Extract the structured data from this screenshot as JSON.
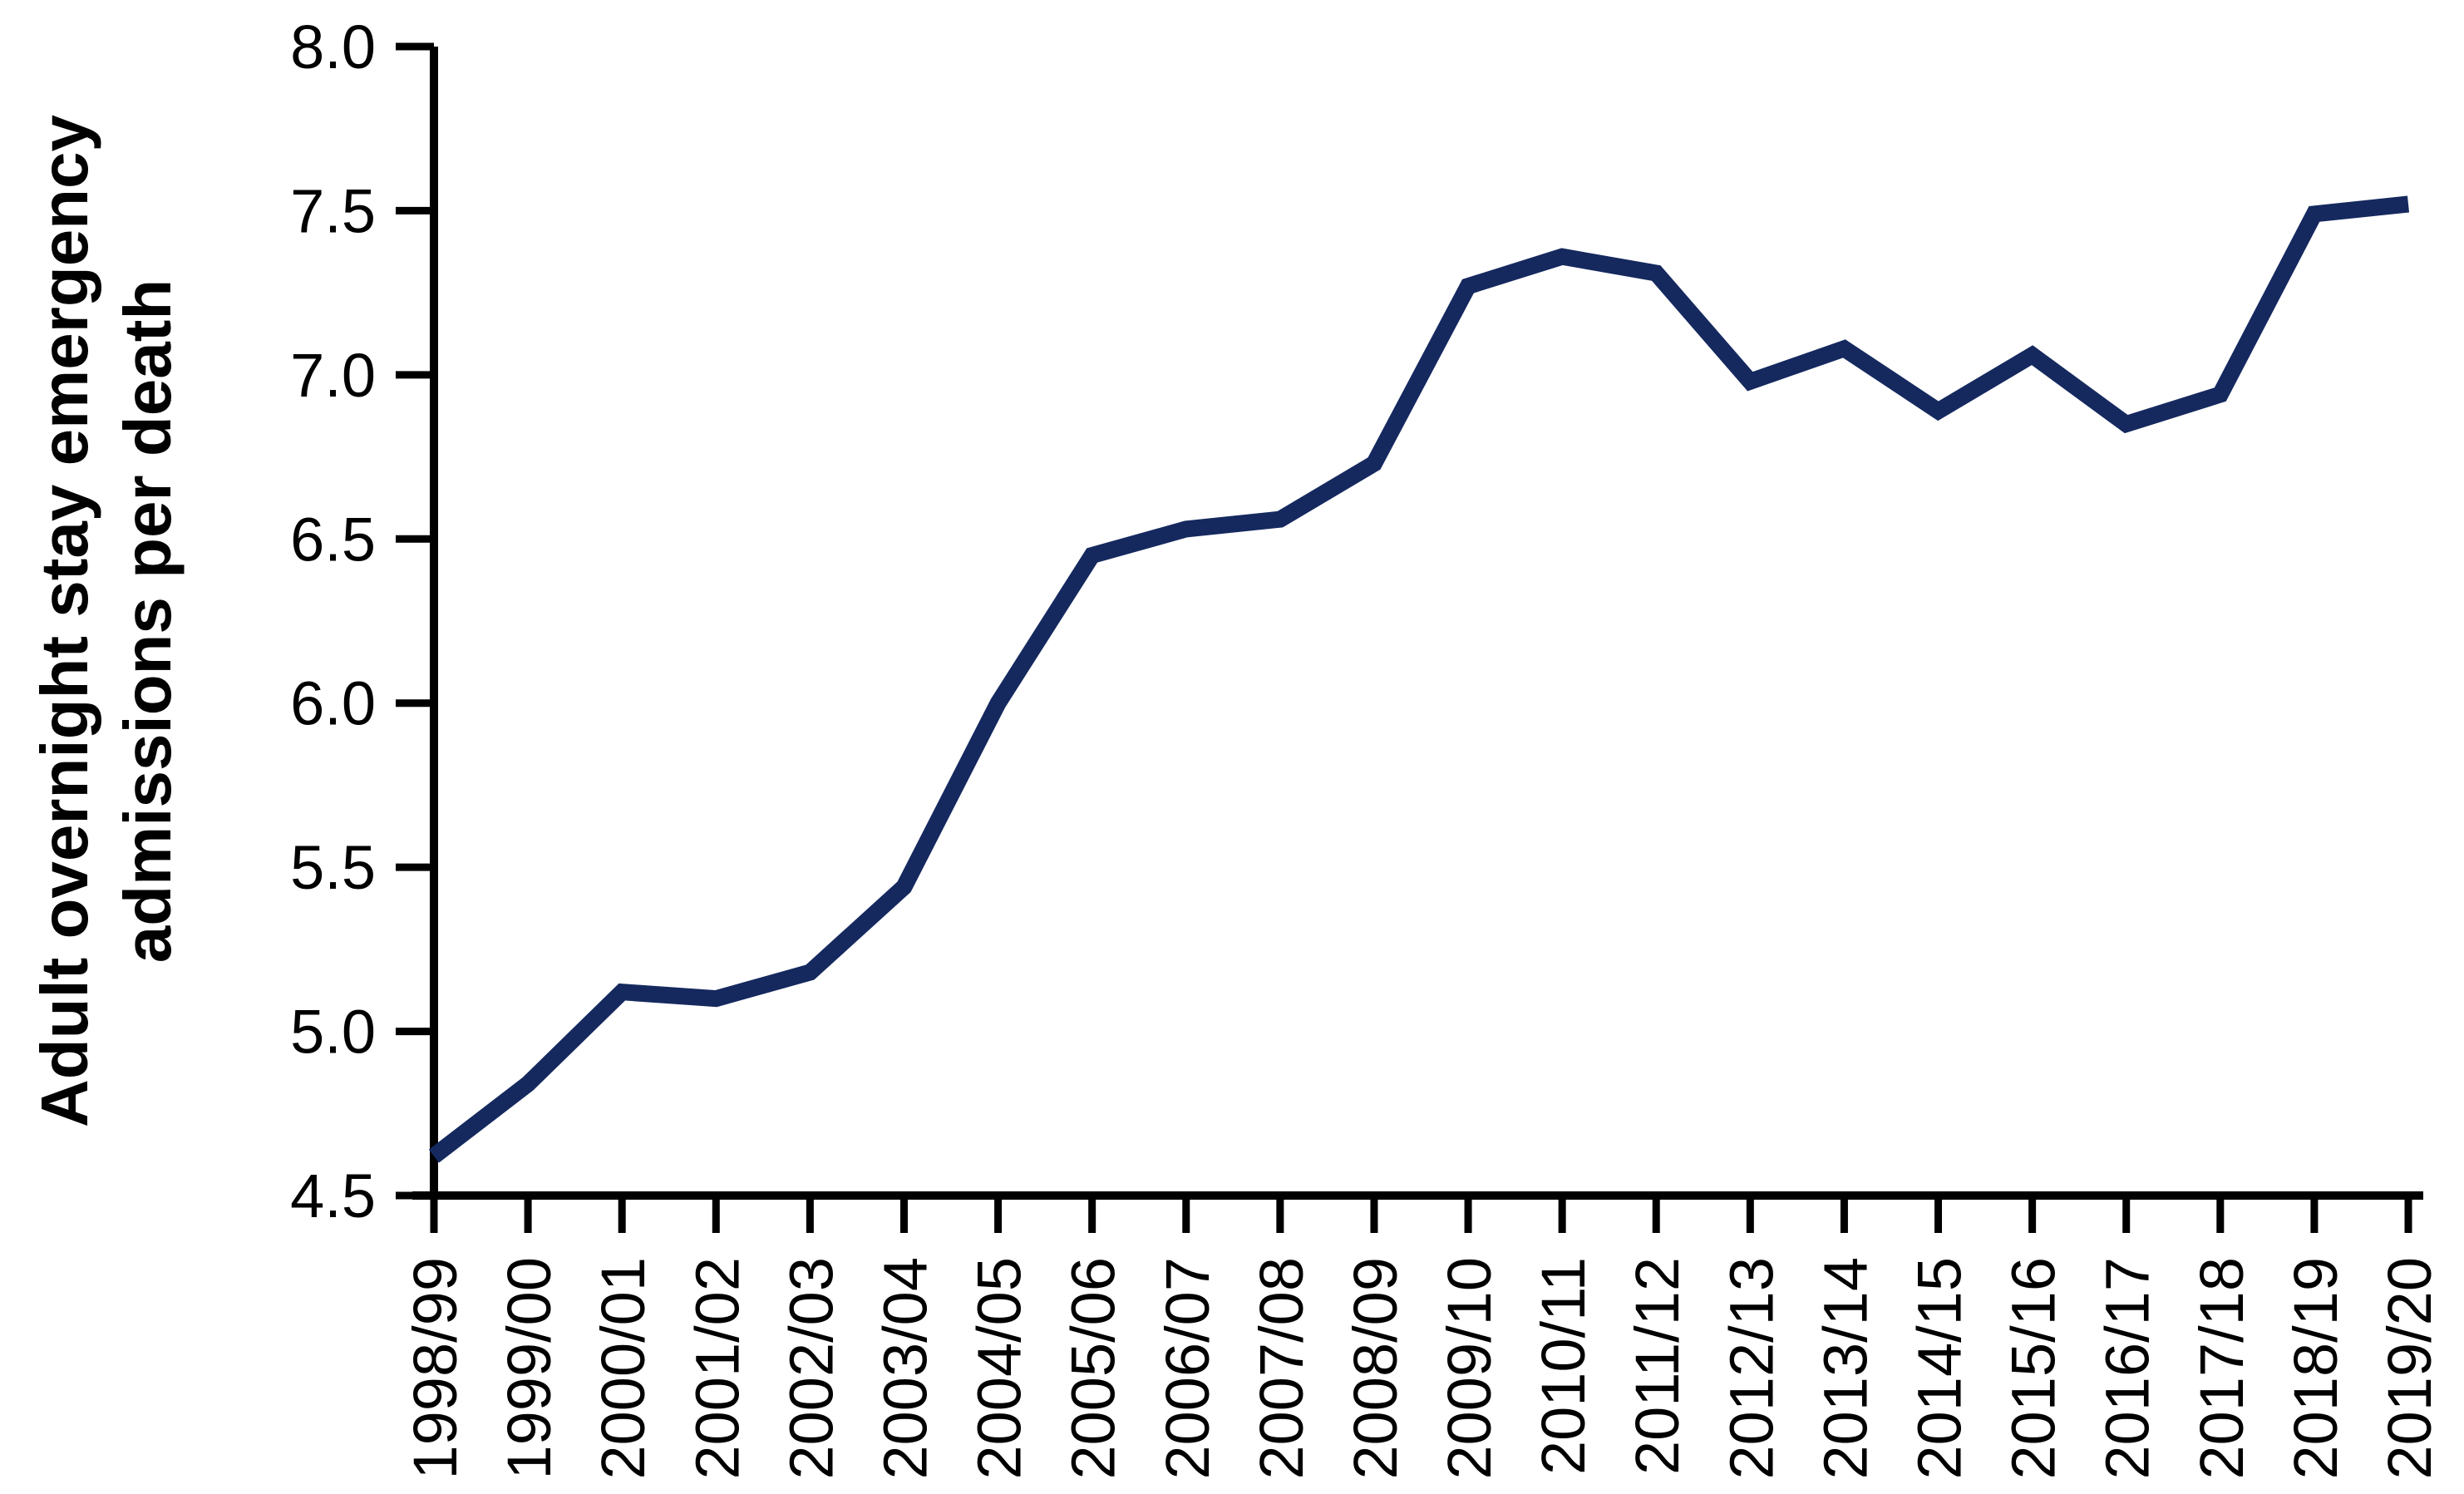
{
  "chart_data": {
    "type": "line",
    "title": "",
    "ylabel_lines": [
      "Adult overnight stay emergency",
      "admissions per death"
    ],
    "xlabel": "",
    "categories": [
      "1998/99",
      "1999/00",
      "2000/01",
      "2001/02",
      "2002/03",
      "2003/04",
      "2004/05",
      "2005/06",
      "2006/07",
      "2007/08",
      "2008/09",
      "2009/10",
      "2010/11",
      "2011/12",
      "2012/13",
      "2013/14",
      "2014/15",
      "2015/16",
      "2016/17",
      "2017/18",
      "2018/19",
      "2019/20"
    ],
    "series": [
      {
        "name": "Adult overnight stay emergency admissions per death",
        "values": [
          4.62,
          4.84,
          5.12,
          5.1,
          5.18,
          5.44,
          6.0,
          6.45,
          6.53,
          6.56,
          6.73,
          7.27,
          7.36,
          7.31,
          6.98,
          7.08,
          6.89,
          7.06,
          6.85,
          6.94,
          7.49,
          7.52
        ]
      }
    ],
    "ylim": [
      4.5,
      8.0
    ],
    "ytick_step": 0.5,
    "ytick_labels": [
      "8.0",
      "7.5",
      "7.0",
      "6.5",
      "6.0",
      "5.5",
      "5.0",
      "4.5"
    ],
    "grid": false,
    "legend_position": "none",
    "colors": {
      "line": "#15295f",
      "axis": "#000000",
      "background": "#ffffff"
    }
  }
}
